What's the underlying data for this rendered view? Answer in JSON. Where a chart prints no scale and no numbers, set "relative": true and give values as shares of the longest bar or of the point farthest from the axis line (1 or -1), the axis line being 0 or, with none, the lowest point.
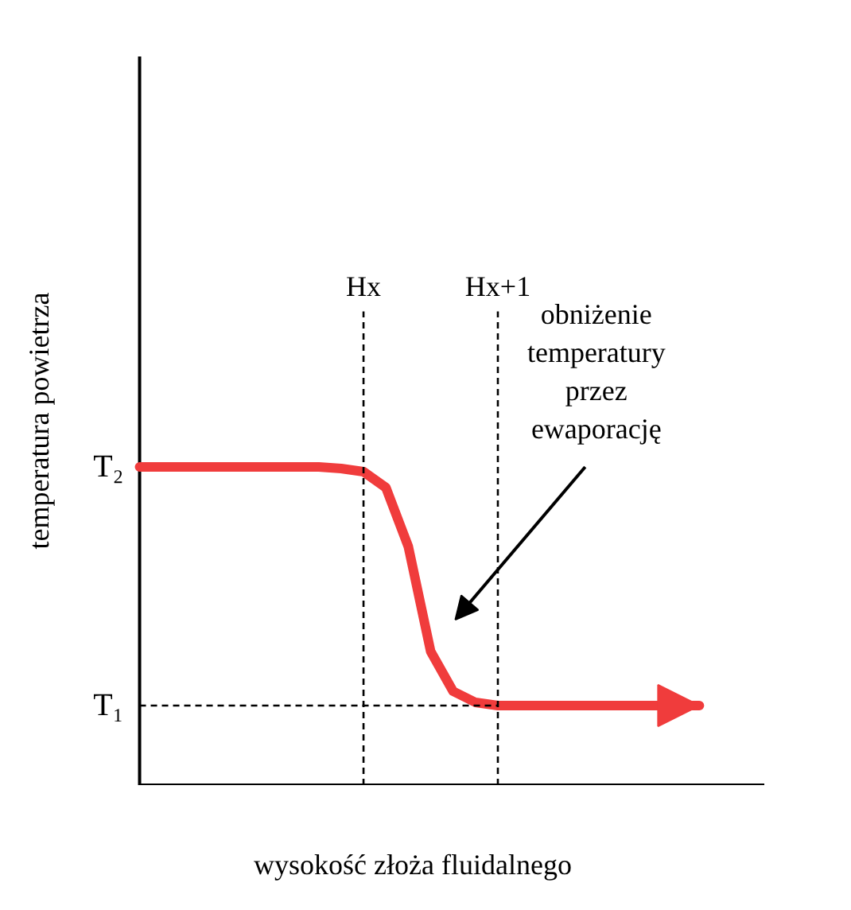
{
  "chart_data": {
    "type": "line",
    "relative": true,
    "xlabel": "wysokość złoża fluidalnego",
    "ylabel": "temperatura powietrza",
    "categories": [
      null,
      null,
      null,
      null,
      null,
      null,
      null,
      null,
      null,
      null,
      "Hx",
      null,
      null,
      null,
      null,
      null,
      "Hx+1",
      null,
      null,
      null,
      null,
      null,
      null,
      null,
      null,
      null
    ],
    "series": [
      {
        "color": "#f03c3c",
        "values": [
          1.0,
          1.0,
          1.0,
          1.0,
          1.0,
          1.0,
          1.0,
          1.0,
          1.0,
          0.995,
          0.985,
          0.935,
          0.75,
          0.42,
          0.295,
          0.26,
          0.25,
          0.25,
          0.25,
          0.25,
          0.25,
          0.25,
          0.25,
          0.25,
          0.25,
          0.25
        ]
      }
    ],
    "tick_labels": "x",
    "ref_lines": [
      {
        "axis": "x",
        "value": "Hx",
        "label": null,
        "line_style": "dashed"
      },
      {
        "axis": "x",
        "value": "Hx+1",
        "label": null,
        "line_style": "dashed"
      },
      {
        "axis": "y",
        "value": 0.25,
        "label": "T₁",
        "line_style": "dashed"
      }
    ],
    "annotations": [
      "T₂",
      "obniżenie\ntemperatury\nprzez\newaporację"
    ]
  }
}
